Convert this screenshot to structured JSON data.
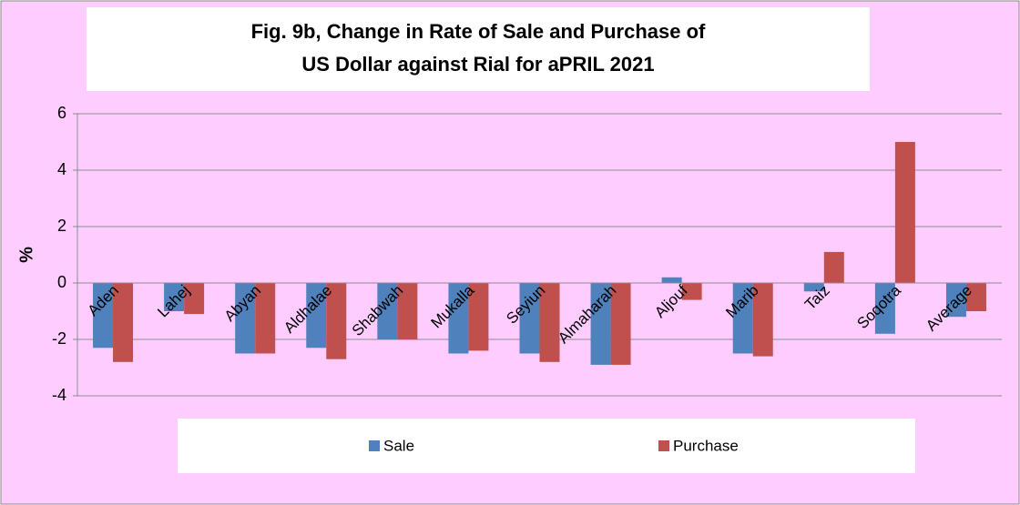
{
  "chart_data": {
    "type": "bar",
    "title": "Fig. 9b, Change in Rate of Sale and Purchase of US Dollar against Rial for aPRIL 2021",
    "y_label": "%",
    "categories": [
      "Aden",
      "Lahej",
      "Abyan",
      "Aldhalae",
      "Shabwah",
      "Mukalla",
      "Seyiun",
      "Almaharah",
      "Aljouf",
      "Marib",
      "Taiz",
      "Soqotra",
      "Average"
    ],
    "series": [
      {
        "name": "Sale",
        "color": "#4f81bd",
        "values": [
          -2.3,
          -1.0,
          -2.5,
          -2.3,
          -2.0,
          -2.5,
          -2.5,
          -2.9,
          0.2,
          -2.5,
          -0.3,
          -1.8,
          -1.2
        ]
      },
      {
        "name": "Purchase",
        "color": "#c0504d",
        "values": [
          -2.8,
          -1.1,
          -2.5,
          -2.7,
          -2.0,
          -2.4,
          -2.8,
          -2.9,
          -0.6,
          -2.6,
          1.1,
          5.0,
          -1.0
        ]
      }
    ],
    "ylim": [
      -4,
      6
    ],
    "yticks": [
      -4,
      -2,
      0,
      2,
      4,
      6
    ],
    "grid": true,
    "legend": "bottom"
  }
}
